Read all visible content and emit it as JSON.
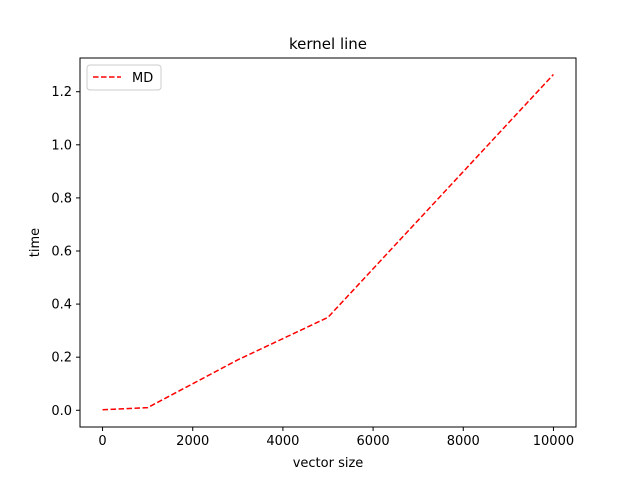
{
  "chart_data": {
    "type": "line",
    "title": "kernel line",
    "xlabel": "vector size",
    "ylabel": "time",
    "xlim": [
      -500,
      10500
    ],
    "ylim": [
      -0.063,
      1.327
    ],
    "xticks": [
      0,
      2000,
      4000,
      6000,
      8000,
      10000
    ],
    "yticks": [
      0.0,
      0.2,
      0.4,
      0.6,
      0.8,
      1.0,
      1.2
    ],
    "xtick_labels": [
      "0",
      "2000",
      "4000",
      "6000",
      "8000",
      "10000"
    ],
    "ytick_labels": [
      "0.0",
      "0.2",
      "0.4",
      "0.6",
      "0.8",
      "1.0",
      "1.2"
    ],
    "grid": false,
    "legend_position": "upper-left",
    "series": [
      {
        "name": "MD",
        "color": "#ff0000",
        "line_style": "dashed",
        "x": [
          0,
          1000,
          3000,
          5000,
          10000
        ],
        "y": [
          0.002,
          0.01,
          0.19,
          0.35,
          1.265
        ]
      }
    ]
  }
}
